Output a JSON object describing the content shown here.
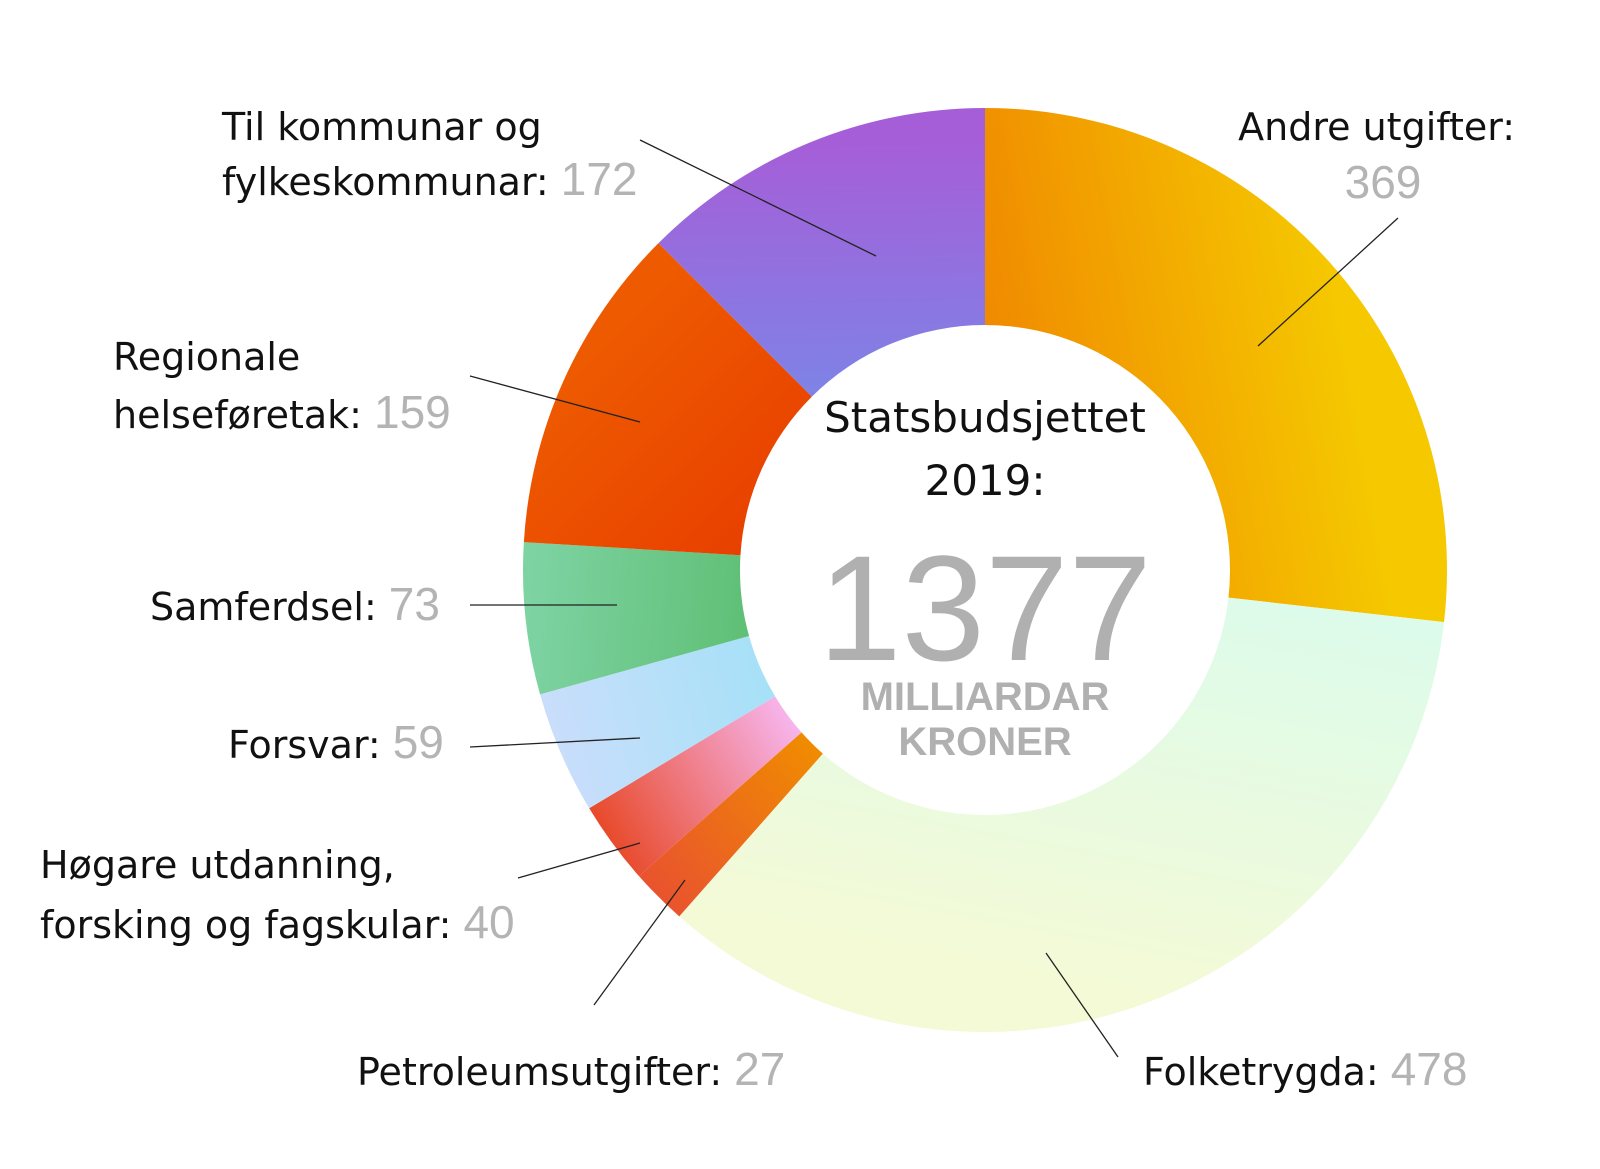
{
  "chart_data": {
    "type": "donut",
    "center": {
      "title_line1": "Statsbudsjettet",
      "title_line2": "2019:",
      "total": "1377",
      "unit_line1": "MILLIARDAR",
      "unit_line2": "KRONER"
    },
    "slices": [
      {
        "key": "andre",
        "label_lines": [
          "Andre utgifter:"
        ],
        "value": 369,
        "value_text": "369",
        "color": "#F08A00",
        "color2": "#F5C800"
      },
      {
        "key": "folketrygda",
        "label_lines": [
          "Folketrygda:"
        ],
        "value": 478,
        "value_text": "478",
        "color": "#DDFBEA",
        "color2": "#F4FAD6"
      },
      {
        "key": "petroleum",
        "label_lines": [
          "Petroleumsutgifter:"
        ],
        "value": 27,
        "value_text": "27",
        "color": "#F08C00",
        "color2": "#E9532E"
      },
      {
        "key": "hogare",
        "label_lines": [
          "Høgare utdanning,",
          "forsking og fagskular:"
        ],
        "value": 40,
        "value_text": "40",
        "color": "#F7B6EE",
        "color2": "#E84B2C"
      },
      {
        "key": "forsvar",
        "label_lines": [
          "Forsvar:"
        ],
        "value": 59,
        "value_text": "59",
        "color": "#A6E1F7",
        "color2": "#C8DEFB"
      },
      {
        "key": "samferdsel",
        "label_lines": [
          "Samferdsel:"
        ],
        "value": 73,
        "value_text": "73",
        "color": "#5FBF75",
        "color2": "#7ED3A3"
      },
      {
        "key": "regionale",
        "label_lines": [
          "Regionale",
          "helseføretak:"
        ],
        "value": 159,
        "value_text": "159",
        "color": "#E84000",
        "color2": "#EE5A00"
      },
      {
        "key": "kommunar",
        "label_lines": [
          "Til kommunar og",
          "fylkeskommunar:"
        ],
        "value": 172,
        "value_text": "172",
        "color": "#7E83E6",
        "color2": "#A65ED8"
      }
    ]
  }
}
